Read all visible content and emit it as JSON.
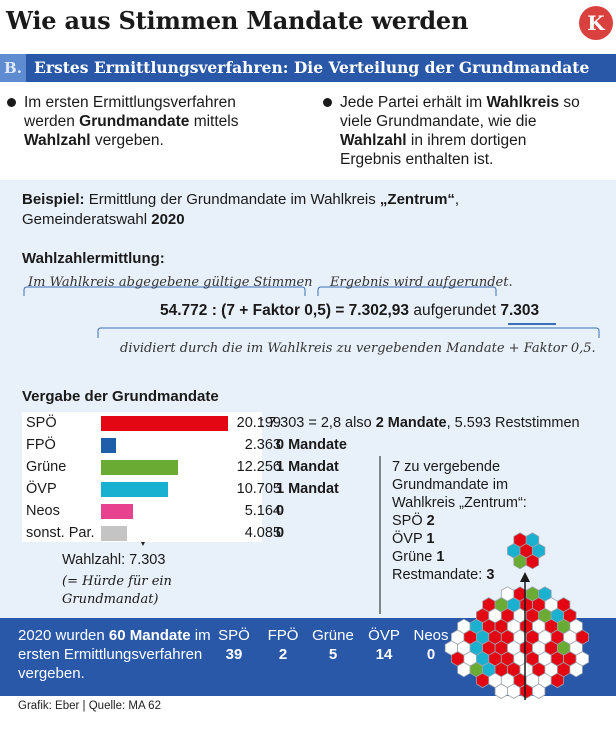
{
  "header": {
    "title": "Wie aus Stimmen Mandate werden",
    "logo_letter": "K"
  },
  "section": {
    "letter": "B.",
    "title": "Erstes Ermittlungsverfahren: Die Verteilung der Grundmandate"
  },
  "bullets": {
    "left": {
      "pre": "Im ersten Ermittlungsverfahren werden ",
      "bold1": "Grundmandate",
      "mid": " mittels ",
      "bold2": "Wahlzahl",
      "post": " vergeben."
    },
    "right": {
      "pre": "Jede Partei erhält im ",
      "bold1": "Wahlkreis",
      "mid": " so viele Grundmandate, wie die ",
      "bold2": "Wahlzahl",
      "post": " in ihrem dortigen Ergebnis enthalten ist."
    }
  },
  "example": {
    "label": "Beispiel:",
    "text": " Ermittlung der Grundmandate im Wahlkreis ",
    "district": "„Zentrum“",
    "text2": ", Gemeinderatswahl ",
    "year": "2020"
  },
  "calc": {
    "heading": "Wahlzahlermittlung:",
    "note_votes": "Im Wahlkreis abgegebene gültige Stimmen",
    "note_round": "Ergebnis wird aufgerundet.",
    "formula_main": "54.772 : (7 + Faktor 0,5) = 7.302,93",
    "formula_word": " aufgerundet ",
    "formula_result": "7.303",
    "note_divisor": "dividiert durch die im Wahlkreis zu vergebenden Mandate + Faktor 0,5."
  },
  "allocation": {
    "heading": "Vergabe der Grundmandate",
    "max_votes": 20199,
    "rows": [
      {
        "party": "SPÖ",
        "votes": "20.199",
        "votes_num": 20199,
        "color": "#e30613",
        "result_pre": " : 7.303 = 2,8 also ",
        "result_bold": "2 Mandate",
        "result_post": ", 5.593 Reststimmen"
      },
      {
        "party": "FPÖ",
        "votes": "2.363",
        "votes_num": 2363,
        "color": "#1f5ea8",
        "result_pre": "",
        "result_bold": "0 Mandate",
        "result_post": ""
      },
      {
        "party": "Grüne",
        "votes": "12.256",
        "votes_num": 12256,
        "color": "#6aab34",
        "result_pre": "",
        "result_bold": "1 Mandat",
        "result_post": ""
      },
      {
        "party": "ÖVP",
        "votes": "10.705",
        "votes_num": 10705,
        "color": "#1ab0d0",
        "result_pre": "",
        "result_bold": "1 Mandat",
        "result_post": ""
      },
      {
        "party": "Neos",
        "votes": "5.164",
        "votes_num": 5164,
        "color": "#e8418f",
        "result_pre": "",
        "result_bold": "0",
        "result_post": ""
      },
      {
        "party": "sonst. Par.",
        "votes": "4.085",
        "votes_num": 4085,
        "color": "#c4c4c4",
        "result_pre": "",
        "result_bold": "0",
        "result_post": ""
      }
    ],
    "wahlzahl": "Wahlzahl: 7.303",
    "hurdle": "(= Hürde für ein Grundmandat)"
  },
  "side_box": {
    "intro": "7 zu vergebende Grundmandate im Wahlkreis „Zentrum“:",
    "lines": [
      {
        "label": "SPÖ ",
        "value": "2"
      },
      {
        "label": "ÖVP ",
        "value": "1"
      },
      {
        "label": "Grüne ",
        "value": "1"
      },
      {
        "label": "Restmandate: ",
        "value": "3"
      }
    ]
  },
  "summary": {
    "pre": "2020 wurden ",
    "bold": "60 Mandate",
    "post": " im ersten Ermittlungs­verfahren vergeben.",
    "parties": [
      {
        "name": "SPÖ",
        "value": "39"
      },
      {
        "name": "FPÖ",
        "value": "2"
      },
      {
        "name": "Grüne",
        "value": "5"
      },
      {
        "name": "ÖVP",
        "value": "14"
      },
      {
        "name": "Neos",
        "value": "0"
      }
    ]
  },
  "credit": "Grafik: Eber | Quelle: MA 62",
  "colors": {
    "blue": "#2a58a8",
    "spoe": "#e30613",
    "oevp": "#1ab0d0",
    "gruene": "#6aab34",
    "hex_empty": "#ffffff"
  }
}
